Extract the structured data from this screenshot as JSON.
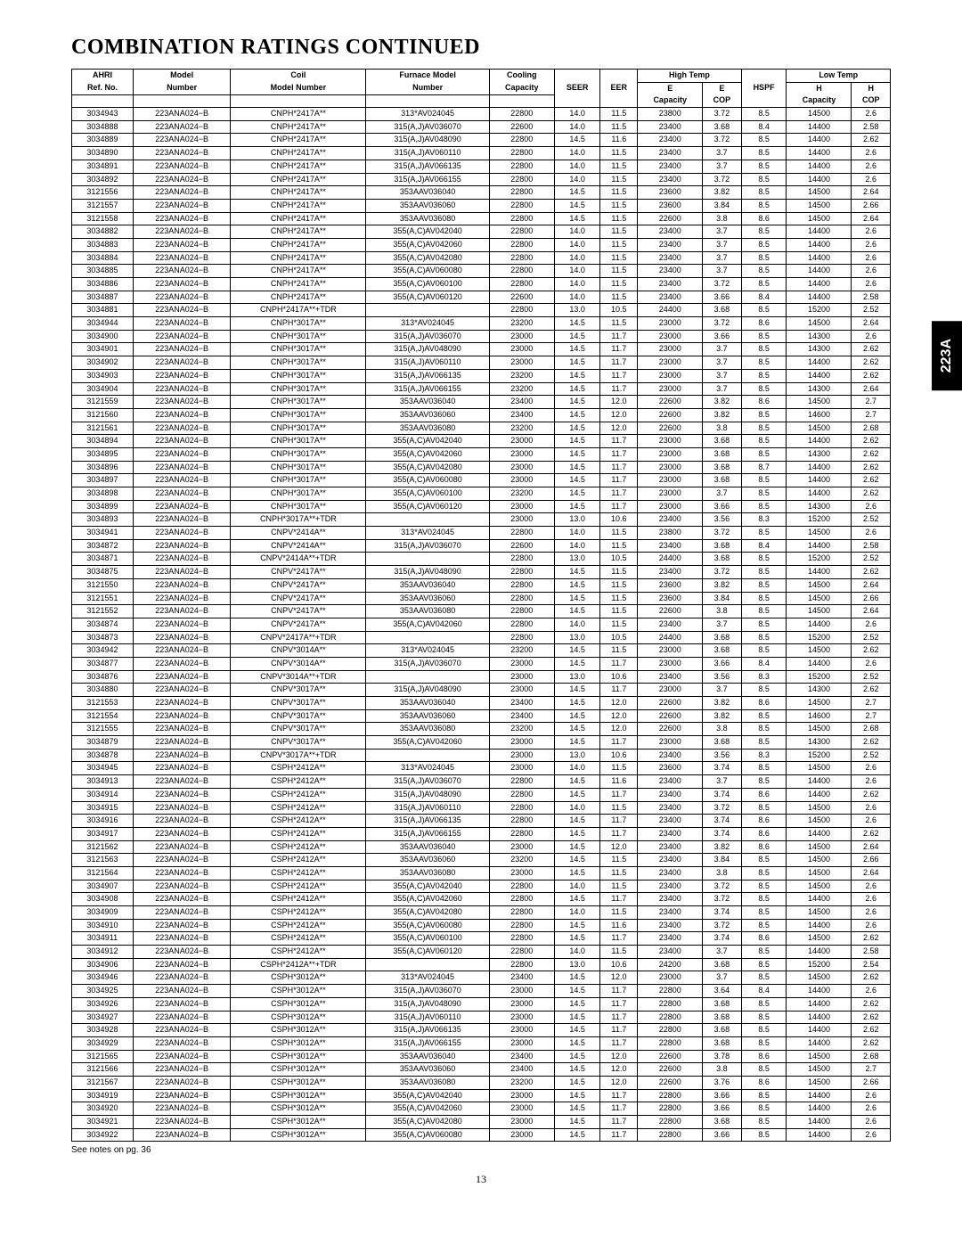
{
  "title": "COMBINATION RATINGS CONTINUED",
  "side_tab": "223A",
  "footnote": "See notes on pg. 36",
  "page_number": "13",
  "headers": {
    "row1": [
      "AHRI",
      "Model",
      "Coil",
      "Furnace Model",
      "Cooling",
      "SEER",
      "EER",
      "High Temp",
      "HSPF",
      "Low Temp"
    ],
    "row2": [
      "Ref. No.",
      "Number",
      "Model Number",
      "Number",
      "Capacity",
      "",
      "",
      "E",
      "E",
      "",
      "H",
      "H"
    ],
    "row3": [
      "",
      "",
      "",
      "",
      "",
      "",
      "",
      "Capacity",
      "COP",
      "",
      "Capacity",
      "COP"
    ]
  },
  "columns": [
    "ahri",
    "model",
    "coil",
    "furnace",
    "cooling",
    "seer",
    "eer",
    "ht_cap",
    "ht_cop",
    "hspf",
    "lt_cap",
    "lt_cop"
  ],
  "rows": [
    [
      "3034943",
      "223ANA024−B",
      "CNPH*2417A**",
      "313*AV024045",
      "22800",
      "14.0",
      "11.5",
      "23800",
      "3.72",
      "8.5",
      "14500",
      "2.6"
    ],
    [
      "3034888",
      "223ANA024−B",
      "CNPH*2417A**",
      "315(A,J)AV036070",
      "22600",
      "14.0",
      "11.5",
      "23400",
      "3.68",
      "8.4",
      "14400",
      "2.58"
    ],
    [
      "3034889",
      "223ANA024−B",
      "CNPH*2417A**",
      "315(A,J)AV048090",
      "22800",
      "14.5",
      "11.6",
      "23400",
      "3.72",
      "8.5",
      "14400",
      "2.62"
    ],
    [
      "3034890",
      "223ANA024−B",
      "CNPH*2417A**",
      "315(A,J)AV060110",
      "22800",
      "14.0",
      "11.5",
      "23400",
      "3.7",
      "8.5",
      "14400",
      "2.6"
    ],
    [
      "3034891",
      "223ANA024−B",
      "CNPH*2417A**",
      "315(A,J)AV066135",
      "22800",
      "14.0",
      "11.5",
      "23400",
      "3.7",
      "8.5",
      "14400",
      "2.6"
    ],
    [
      "3034892",
      "223ANA024−B",
      "CNPH*2417A**",
      "315(A,J)AV066155",
      "22800",
      "14.0",
      "11.5",
      "23400",
      "3.72",
      "8.5",
      "14400",
      "2.6"
    ],
    [
      "3121556",
      "223ANA024−B",
      "CNPH*2417A**",
      "353AAV036040",
      "22800",
      "14.5",
      "11.5",
      "23600",
      "3.82",
      "8.5",
      "14500",
      "2.64"
    ],
    [
      "3121557",
      "223ANA024−B",
      "CNPH*2417A**",
      "353AAV036060",
      "22800",
      "14.5",
      "11.5",
      "23600",
      "3.84",
      "8.5",
      "14500",
      "2.66"
    ],
    [
      "3121558",
      "223ANA024−B",
      "CNPH*2417A**",
      "353AAV036080",
      "22800",
      "14.5",
      "11.5",
      "22600",
      "3.8",
      "8.6",
      "14500",
      "2.64"
    ],
    [
      "3034882",
      "223ANA024−B",
      "CNPH*2417A**",
      "355(A,C)AV042040",
      "22800",
      "14.0",
      "11.5",
      "23400",
      "3.7",
      "8.5",
      "14400",
      "2.6"
    ],
    [
      "3034883",
      "223ANA024−B",
      "CNPH*2417A**",
      "355(A,C)AV042060",
      "22800",
      "14.0",
      "11.5",
      "23400",
      "3.7",
      "8.5",
      "14400",
      "2.6"
    ],
    [
      "3034884",
      "223ANA024−B",
      "CNPH*2417A**",
      "355(A,C)AV042080",
      "22800",
      "14.0",
      "11.5",
      "23400",
      "3.7",
      "8.5",
      "14400",
      "2.6"
    ],
    [
      "3034885",
      "223ANA024−B",
      "CNPH*2417A**",
      "355(A,C)AV060080",
      "22800",
      "14.0",
      "11.5",
      "23400",
      "3.7",
      "8.5",
      "14400",
      "2.6"
    ],
    [
      "3034886",
      "223ANA024−B",
      "CNPH*2417A**",
      "355(A,C)AV060100",
      "22800",
      "14.0",
      "11.5",
      "23400",
      "3.72",
      "8.5",
      "14400",
      "2.6"
    ],
    [
      "3034887",
      "223ANA024−B",
      "CNPH*2417A**",
      "355(A,C)AV060120",
      "22600",
      "14.0",
      "11.5",
      "23400",
      "3.66",
      "8.4",
      "14400",
      "2.58"
    ],
    [
      "3034881",
      "223ANA024−B",
      "CNPH*2417A**+TDR",
      "",
      "22800",
      "13.0",
      "10.5",
      "24400",
      "3.68",
      "8.5",
      "15200",
      "2.52"
    ],
    [
      "3034944",
      "223ANA024−B",
      "CNPH*3017A**",
      "313*AV024045",
      "23200",
      "14.5",
      "11.5",
      "23000",
      "3.72",
      "8.6",
      "14500",
      "2.64"
    ],
    [
      "3034900",
      "223ANA024−B",
      "CNPH*3017A**",
      "315(A,J)AV036070",
      "23000",
      "14.5",
      "11.7",
      "23000",
      "3.66",
      "8.5",
      "14300",
      "2.6"
    ],
    [
      "3034901",
      "223ANA024−B",
      "CNPH*3017A**",
      "315(A,J)AV048090",
      "23000",
      "14.5",
      "11.7",
      "23000",
      "3.7",
      "8.5",
      "14300",
      "2.62"
    ],
    [
      "3034902",
      "223ANA024−B",
      "CNPH*3017A**",
      "315(A,J)AV060110",
      "23000",
      "14.5",
      "11.7",
      "23000",
      "3.7",
      "8.5",
      "14400",
      "2.62"
    ],
    [
      "3034903",
      "223ANA024−B",
      "CNPH*3017A**",
      "315(A,J)AV066135",
      "23200",
      "14.5",
      "11.7",
      "23000",
      "3.7",
      "8.5",
      "14400",
      "2.62"
    ],
    [
      "3034904",
      "223ANA024−B",
      "CNPH*3017A**",
      "315(A,J)AV066155",
      "23200",
      "14.5",
      "11.7",
      "23000",
      "3.7",
      "8.5",
      "14300",
      "2.64"
    ],
    [
      "3121559",
      "223ANA024−B",
      "CNPH*3017A**",
      "353AAV036040",
      "23400",
      "14.5",
      "12.0",
      "22600",
      "3.82",
      "8.6",
      "14500",
      "2.7"
    ],
    [
      "3121560",
      "223ANA024−B",
      "CNPH*3017A**",
      "353AAV036060",
      "23400",
      "14.5",
      "12.0",
      "22600",
      "3.82",
      "8.5",
      "14600",
      "2.7"
    ],
    [
      "3121561",
      "223ANA024−B",
      "CNPH*3017A**",
      "353AAV036080",
      "23200",
      "14.5",
      "12.0",
      "22600",
      "3.8",
      "8.5",
      "14500",
      "2.68"
    ],
    [
      "3034894",
      "223ANA024−B",
      "CNPH*3017A**",
      "355(A,C)AV042040",
      "23000",
      "14.5",
      "11.7",
      "23000",
      "3.68",
      "8.5",
      "14400",
      "2.62"
    ],
    [
      "3034895",
      "223ANA024−B",
      "CNPH*3017A**",
      "355(A,C)AV042060",
      "23000",
      "14.5",
      "11.7",
      "23000",
      "3.68",
      "8.5",
      "14300",
      "2.62"
    ],
    [
      "3034896",
      "223ANA024−B",
      "CNPH*3017A**",
      "355(A,C)AV042080",
      "23000",
      "14.5",
      "11.7",
      "23000",
      "3.68",
      "8.7",
      "14400",
      "2.62"
    ],
    [
      "3034897",
      "223ANA024−B",
      "CNPH*3017A**",
      "355(A,C)AV060080",
      "23000",
      "14.5",
      "11.7",
      "23000",
      "3.68",
      "8.5",
      "14400",
      "2.62"
    ],
    [
      "3034898",
      "223ANA024−B",
      "CNPH*3017A**",
      "355(A,C)AV060100",
      "23200",
      "14.5",
      "11.7",
      "23000",
      "3.7",
      "8.5",
      "14400",
      "2.62"
    ],
    [
      "3034899",
      "223ANA024−B",
      "CNPH*3017A**",
      "355(A,C)AV060120",
      "23000",
      "14.5",
      "11.7",
      "23000",
      "3.66",
      "8.5",
      "14300",
      "2.6"
    ],
    [
      "3034893",
      "223ANA024−B",
      "CNPH*3017A**+TDR",
      "",
      "23000",
      "13.0",
      "10.6",
      "23400",
      "3.56",
      "8.3",
      "15200",
      "2.52"
    ],
    [
      "3034941",
      "223ANA024−B",
      "CNPV*2414A**",
      "313*AV024045",
      "22800",
      "14.0",
      "11.5",
      "23800",
      "3.72",
      "8.5",
      "14500",
      "2.6"
    ],
    [
      "3034872",
      "223ANA024−B",
      "CNPV*2414A**",
      "315(A,J)AV036070",
      "22600",
      "14.0",
      "11.5",
      "23400",
      "3.68",
      "8.4",
      "14400",
      "2.58"
    ],
    [
      "3034871",
      "223ANA024−B",
      "CNPV*2414A**+TDR",
      "",
      "22800",
      "13.0",
      "10.5",
      "24400",
      "3.68",
      "8.5",
      "15200",
      "2.52"
    ],
    [
      "3034875",
      "223ANA024−B",
      "CNPV*2417A**",
      "315(A,J)AV048090",
      "22800",
      "14.5",
      "11.5",
      "23400",
      "3.72",
      "8.5",
      "14400",
      "2.62"
    ],
    [
      "3121550",
      "223ANA024−B",
      "CNPV*2417A**",
      "353AAV036040",
      "22800",
      "14.5",
      "11.5",
      "23600",
      "3.82",
      "8.5",
      "14500",
      "2.64"
    ],
    [
      "3121551",
      "223ANA024−B",
      "CNPV*2417A**",
      "353AAV036060",
      "22800",
      "14.5",
      "11.5",
      "23600",
      "3.84",
      "8.5",
      "14500",
      "2.66"
    ],
    [
      "3121552",
      "223ANA024−B",
      "CNPV*2417A**",
      "353AAV036080",
      "22800",
      "14.5",
      "11.5",
      "22600",
      "3.8",
      "8.5",
      "14500",
      "2.64"
    ],
    [
      "3034874",
      "223ANA024−B",
      "CNPV*2417A**",
      "355(A,C)AV042060",
      "22800",
      "14.0",
      "11.5",
      "23400",
      "3.7",
      "8.5",
      "14400",
      "2.6"
    ],
    [
      "3034873",
      "223ANA024−B",
      "CNPV*2417A**+TDR",
      "",
      "22800",
      "13.0",
      "10.5",
      "24400",
      "3.68",
      "8.5",
      "15200",
      "2.52"
    ],
    [
      "3034942",
      "223ANA024−B",
      "CNPV*3014A**",
      "313*AV024045",
      "23200",
      "14.5",
      "11.5",
      "23000",
      "3.68",
      "8.5",
      "14500",
      "2.62"
    ],
    [
      "3034877",
      "223ANA024−B",
      "CNPV*3014A**",
      "315(A,J)AV036070",
      "23000",
      "14.5",
      "11.7",
      "23000",
      "3.66",
      "8.4",
      "14400",
      "2.6"
    ],
    [
      "3034876",
      "223ANA024−B",
      "CNPV*3014A**+TDR",
      "",
      "23000",
      "13.0",
      "10.6",
      "23400",
      "3.56",
      "8.3",
      "15200",
      "2.52"
    ],
    [
      "3034880",
      "223ANA024−B",
      "CNPV*3017A**",
      "315(A,J)AV048090",
      "23000",
      "14.5",
      "11.7",
      "23000",
      "3.7",
      "8.5",
      "14300",
      "2.62"
    ],
    [
      "3121553",
      "223ANA024−B",
      "CNPV*3017A**",
      "353AAV036040",
      "23400",
      "14.5",
      "12.0",
      "22600",
      "3.82",
      "8.6",
      "14500",
      "2.7"
    ],
    [
      "3121554",
      "223ANA024−B",
      "CNPV*3017A**",
      "353AAV036060",
      "23400",
      "14.5",
      "12.0",
      "22600",
      "3.82",
      "8.5",
      "14600",
      "2.7"
    ],
    [
      "3121555",
      "223ANA024−B",
      "CNPV*3017A**",
      "353AAV036080",
      "23200",
      "14.5",
      "12.0",
      "22600",
      "3.8",
      "8.5",
      "14500",
      "2.68"
    ],
    [
      "3034879",
      "223ANA024−B",
      "CNPV*3017A**",
      "355(A,C)AV042060",
      "23000",
      "14.5",
      "11.7",
      "23000",
      "3.68",
      "8.5",
      "14300",
      "2.62"
    ],
    [
      "3034878",
      "223ANA024−B",
      "CNPV*3017A**+TDR",
      "",
      "23000",
      "13.0",
      "10.6",
      "23400",
      "3.56",
      "8.3",
      "15200",
      "2.52"
    ],
    [
      "3034945",
      "223ANA024−B",
      "CSPH*2412A**",
      "313*AV024045",
      "23000",
      "14.0",
      "11.5",
      "23600",
      "3.74",
      "8.5",
      "14500",
      "2.6"
    ],
    [
      "3034913",
      "223ANA024−B",
      "CSPH*2412A**",
      "315(A,J)AV036070",
      "22800",
      "14.5",
      "11.6",
      "23400",
      "3.7",
      "8.5",
      "14400",
      "2.6"
    ],
    [
      "3034914",
      "223ANA024−B",
      "CSPH*2412A**",
      "315(A,J)AV048090",
      "22800",
      "14.5",
      "11.7",
      "23400",
      "3.74",
      "8.6",
      "14400",
      "2.62"
    ],
    [
      "3034915",
      "223ANA024−B",
      "CSPH*2412A**",
      "315(A,J)AV060110",
      "22800",
      "14.0",
      "11.5",
      "23400",
      "3.72",
      "8.5",
      "14500",
      "2.6"
    ],
    [
      "3034916",
      "223ANA024−B",
      "CSPH*2412A**",
      "315(A,J)AV066135",
      "22800",
      "14.5",
      "11.7",
      "23400",
      "3.74",
      "8.6",
      "14500",
      "2.6"
    ],
    [
      "3034917",
      "223ANA024−B",
      "CSPH*2412A**",
      "315(A,J)AV066155",
      "22800",
      "14.5",
      "11.7",
      "23400",
      "3.74",
      "8.6",
      "14400",
      "2.62"
    ],
    [
      "3121562",
      "223ANA024−B",
      "CSPH*2412A**",
      "353AAV036040",
      "23000",
      "14.5",
      "12.0",
      "23400",
      "3.82",
      "8.6",
      "14500",
      "2.64"
    ],
    [
      "3121563",
      "223ANA024−B",
      "CSPH*2412A**",
      "353AAV036060",
      "23200",
      "14.5",
      "11.5",
      "23400",
      "3.84",
      "8.5",
      "14500",
      "2.66"
    ],
    [
      "3121564",
      "223ANA024−B",
      "CSPH*2412A**",
      "353AAV036080",
      "23000",
      "14.5",
      "11.5",
      "23400",
      "3.8",
      "8.5",
      "14500",
      "2.64"
    ],
    [
      "3034907",
      "223ANA024−B",
      "CSPH*2412A**",
      "355(A,C)AV042040",
      "22800",
      "14.0",
      "11.5",
      "23400",
      "3.72",
      "8.5",
      "14500",
      "2.6"
    ],
    [
      "3034908",
      "223ANA024−B",
      "CSPH*2412A**",
      "355(A,C)AV042060",
      "22800",
      "14.5",
      "11.7",
      "23400",
      "3.72",
      "8.5",
      "14400",
      "2.6"
    ],
    [
      "3034909",
      "223ANA024−B",
      "CSPH*2412A**",
      "355(A,C)AV042080",
      "22800",
      "14.0",
      "11.5",
      "23400",
      "3.74",
      "8.5",
      "14500",
      "2.6"
    ],
    [
      "3034910",
      "223ANA024−B",
      "CSPH*2412A**",
      "355(A,C)AV060080",
      "22800",
      "14.5",
      "11.6",
      "23400",
      "3.72",
      "8.5",
      "14400",
      "2.6"
    ],
    [
      "3034911",
      "223ANA024−B",
      "CSPH*2412A**",
      "355(A,C)AV060100",
      "22800",
      "14.5",
      "11.7",
      "23400",
      "3.74",
      "8.6",
      "14500",
      "2.62"
    ],
    [
      "3034912",
      "223ANA024−B",
      "CSPH*2412A**",
      "355(A,C)AV060120",
      "22800",
      "14.0",
      "11.5",
      "23400",
      "3.7",
      "8.5",
      "14400",
      "2.58"
    ],
    [
      "3034906",
      "223ANA024−B",
      "CSPH*2412A**+TDR",
      "",
      "22800",
      "13.0",
      "10.6",
      "24200",
      "3.68",
      "8.5",
      "15200",
      "2.54"
    ],
    [
      "3034946",
      "223ANA024−B",
      "CSPH*3012A**",
      "313*AV024045",
      "23400",
      "14.5",
      "12.0",
      "23000",
      "3.7",
      "8.5",
      "14500",
      "2.62"
    ],
    [
      "3034925",
      "223ANA024−B",
      "CSPH*3012A**",
      "315(A,J)AV036070",
      "23000",
      "14.5",
      "11.7",
      "22800",
      "3.64",
      "8.4",
      "14400",
      "2.6"
    ],
    [
      "3034926",
      "223ANA024−B",
      "CSPH*3012A**",
      "315(A,J)AV048090",
      "23000",
      "14.5",
      "11.7",
      "22800",
      "3.68",
      "8.5",
      "14400",
      "2.62"
    ],
    [
      "3034927",
      "223ANA024−B",
      "CSPH*3012A**",
      "315(A,J)AV060110",
      "23000",
      "14.5",
      "11.7",
      "22800",
      "3.68",
      "8.5",
      "14400",
      "2.62"
    ],
    [
      "3034928",
      "223ANA024−B",
      "CSPH*3012A**",
      "315(A,J)AV066135",
      "23000",
      "14.5",
      "11.7",
      "22800",
      "3.68",
      "8.5",
      "14400",
      "2.62"
    ],
    [
      "3034929",
      "223ANA024−B",
      "CSPH*3012A**",
      "315(A,J)AV066155",
      "23000",
      "14.5",
      "11.7",
      "22800",
      "3.68",
      "8.5",
      "14400",
      "2.62"
    ],
    [
      "3121565",
      "223ANA024−B",
      "CSPH*3012A**",
      "353AAV036040",
      "23400",
      "14.5",
      "12.0",
      "22600",
      "3.78",
      "8.6",
      "14500",
      "2.68"
    ],
    [
      "3121566",
      "223ANA024−B",
      "CSPH*3012A**",
      "353AAV036060",
      "23400",
      "14.5",
      "12.0",
      "22600",
      "3.8",
      "8.5",
      "14500",
      "2.7"
    ],
    [
      "3121567",
      "223ANA024−B",
      "CSPH*3012A**",
      "353AAV036080",
      "23200",
      "14.5",
      "12.0",
      "22600",
      "3.76",
      "8.6",
      "14500",
      "2.66"
    ],
    [
      "3034919",
      "223ANA024−B",
      "CSPH*3012A**",
      "355(A,C)AV042040",
      "23000",
      "14.5",
      "11.7",
      "22800",
      "3.66",
      "8.5",
      "14400",
      "2.6"
    ],
    [
      "3034920",
      "223ANA024−B",
      "CSPH*3012A**",
      "355(A,C)AV042060",
      "23000",
      "14.5",
      "11.7",
      "22800",
      "3.66",
      "8.5",
      "14400",
      "2.6"
    ],
    [
      "3034921",
      "223ANA024−B",
      "CSPH*3012A**",
      "355(A,C)AV042080",
      "23000",
      "14.5",
      "11.7",
      "22800",
      "3.68",
      "8.5",
      "14400",
      "2.6"
    ],
    [
      "3034922",
      "223ANA024−B",
      "CSPH*3012A**",
      "355(A,C)AV060080",
      "23000",
      "14.5",
      "11.7",
      "22800",
      "3.66",
      "8.5",
      "14400",
      "2.6"
    ]
  ]
}
